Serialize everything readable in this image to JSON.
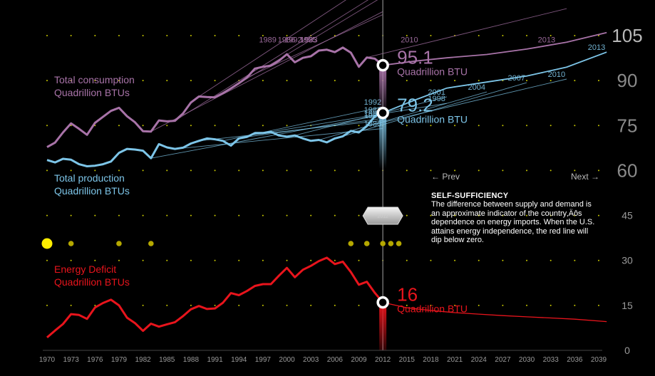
{
  "chart_data": {
    "type": "line",
    "x_axis": {
      "min": 1970,
      "max": 2040,
      "tick_labels": [
        "1970",
        "1973",
        "1976",
        "1979",
        "1982",
        "1985",
        "1988",
        "1991",
        "1994",
        "1997",
        "2000",
        "2003",
        "2006",
        "2009",
        "2012",
        "2015",
        "2018",
        "2021",
        "2024",
        "2027",
        "2030",
        "2033",
        "2036",
        "2039"
      ]
    },
    "left_axis": {
      "min": 0,
      "max": 105,
      "tick_labels": [
        "0",
        "15",
        "30",
        "45",
        "60",
        "75",
        "90",
        "105"
      ]
    },
    "grid": "dotted",
    "marker_year": 2012,
    "series": [
      {
        "key": "consumption",
        "label_line1": "Total consumption",
        "label_line2": "Quadrillion BTUs",
        "color": "#a873a8",
        "readout_value": "95.1",
        "readout_unit": "Quadrillion BTU",
        "x": [
          1970,
          1971,
          1972,
          1973,
          1974,
          1975,
          1976,
          1977,
          1978,
          1979,
          1980,
          1981,
          1982,
          1983,
          1984,
          1985,
          1986,
          1987,
          1988,
          1989,
          1990,
          1991,
          1992,
          1993,
          1994,
          1995,
          1996,
          1997,
          1998,
          1999,
          2000,
          2001,
          2002,
          2003,
          2004,
          2005,
          2006,
          2007,
          2008,
          2009,
          2010,
          2011,
          2012
        ],
        "y": [
          67.8,
          69.3,
          72.7,
          75.7,
          73.9,
          71.9,
          75.9,
          77.9,
          79.9,
          80.9,
          78.1,
          76.1,
          73.1,
          73.0,
          76.7,
          76.4,
          76.6,
          79.0,
          82.7,
          84.7,
          84.5,
          84.4,
          85.8,
          87.4,
          89.1,
          91.0,
          94.0,
          94.6,
          95.0,
          96.6,
          98.8,
          96.1,
          97.6,
          98.1,
          100.0,
          100.3,
          99.5,
          101.0,
          99.3,
          94.6,
          97.7,
          97.3,
          95.1
        ]
      },
      {
        "key": "production",
        "label_line1": "Total production",
        "label_line2": "Quadrillion BTUs",
        "color": "#7dc5e8",
        "readout_value": "79.2",
        "readout_unit": "Quadrillion BTU",
        "x": [
          1970,
          1971,
          1972,
          1973,
          1974,
          1975,
          1976,
          1977,
          1978,
          1979,
          1980,
          1981,
          1982,
          1983,
          1984,
          1985,
          1986,
          1987,
          1988,
          1989,
          1990,
          1991,
          1992,
          1993,
          1994,
          1995,
          1996,
          1997,
          1998,
          1999,
          2000,
          2001,
          2002,
          2003,
          2004,
          2005,
          2006,
          2007,
          2008,
          2009,
          2010,
          2011,
          2012
        ],
        "y": [
          63.5,
          62.7,
          63.9,
          63.6,
          62.1,
          61.4,
          61.6,
          62.1,
          63.0,
          65.9,
          67.2,
          67.0,
          66.6,
          64.1,
          68.8,
          67.7,
          67.2,
          67.6,
          69.0,
          69.9,
          70.7,
          70.4,
          69.9,
          68.3,
          70.7,
          71.2,
          72.5,
          72.5,
          72.9,
          71.7,
          71.3,
          71.7,
          70.7,
          69.9,
          70.2,
          69.4,
          70.7,
          71.4,
          73.2,
          72.7,
          74.8,
          78.1,
          79.2
        ]
      },
      {
        "key": "deficit",
        "label_line1": "Energy Deficit",
        "label_line2": "Quadrillion BTUs",
        "color": "#e8141c",
        "readout_value": "16",
        "readout_unit": "Quadrillion BTU",
        "x": [
          1970,
          1971,
          1972,
          1973,
          1974,
          1975,
          1976,
          1977,
          1978,
          1979,
          1980,
          1981,
          1982,
          1983,
          1984,
          1985,
          1986,
          1987,
          1988,
          1989,
          1990,
          1991,
          1992,
          1993,
          1994,
          1995,
          1996,
          1997,
          1998,
          1999,
          2000,
          2001,
          2002,
          2003,
          2004,
          2005,
          2006,
          2007,
          2008,
          2009,
          2010,
          2011,
          2012
        ],
        "y": [
          4.3,
          6.6,
          8.8,
          12.1,
          11.8,
          10.5,
          14.3,
          15.8,
          16.9,
          15.0,
          10.9,
          9.1,
          6.5,
          8.9,
          7.9,
          8.7,
          9.4,
          11.4,
          13.7,
          14.8,
          13.8,
          14.0,
          15.9,
          19.1,
          18.4,
          19.8,
          21.5,
          22.1,
          22.1,
          24.9,
          27.5,
          24.4,
          26.9,
          28.2,
          29.8,
          30.9,
          28.8,
          29.6,
          26.1,
          21.9,
          22.9,
          19.2,
          16.0
        ],
        "projection": {
          "x": [
            2012,
            2015,
            2018,
            2021,
            2024,
            2027,
            2030,
            2033,
            2036,
            2040
          ],
          "y": [
            16.0,
            14.2,
            13.3,
            12.6,
            12.1,
            11.6,
            11.2,
            10.8,
            10.4,
            9.6
          ]
        }
      }
    ],
    "projections": [
      {
        "label": "1983",
        "series": "consumption",
        "x": [
          1983,
          2012
        ],
        "y": [
          73.0,
          113.0
        ]
      },
      {
        "label": "1986",
        "series": "consumption",
        "x": [
          1986,
          2012
        ],
        "y": [
          76.6,
          120.0
        ]
      },
      {
        "label": "1989",
        "series": "consumption",
        "x": [
          1989,
          2012
        ],
        "y": [
          84.7,
          125.0
        ]
      },
      {
        "label": "1992",
        "series": "consumption",
        "x": [
          1992,
          2012
        ],
        "y": [
          85.8,
          118.0
        ]
      },
      {
        "label": "1995",
        "series": "consumption",
        "x": [
          1995,
          2012
        ],
        "y": [
          91.0,
          112.0
        ]
      },
      {
        "label": "2010",
        "series": "consumption",
        "x": [
          2010,
          2035
        ],
        "y": [
          97.7,
          114.0
        ]
      },
      {
        "label": "2013",
        "series": "consumption",
        "x": [
          2012,
          2016,
          2020,
          2025,
          2030,
          2035,
          2040
        ],
        "y": [
          95.1,
          96.5,
          97.6,
          98.7,
          100.5,
          102.8,
          106.0
        ]
      },
      {
        "label": "1983",
        "series": "production",
        "x": [
          1983,
          2012
        ],
        "y": [
          64.1,
          78.6
        ]
      },
      {
        "label": "1986",
        "series": "production",
        "x": [
          1986,
          2012
        ],
        "y": [
          67.2,
          74.0
        ]
      },
      {
        "label": "1989",
        "series": "production",
        "x": [
          1989,
          2012
        ],
        "y": [
          69.9,
          76.7
        ]
      },
      {
        "label": "1992",
        "series": "production",
        "x": [
          1992,
          2012
        ],
        "y": [
          69.9,
          81.2
        ]
      },
      {
        "label": "1995",
        "series": "production",
        "x": [
          1995,
          2012
        ],
        "y": [
          71.2,
          77.4
        ]
      },
      {
        "label": "1998",
        "series": "production",
        "x": [
          1998,
          2020
        ],
        "y": [
          72.9,
          82.4
        ]
      },
      {
        "label": "2001",
        "series": "production",
        "x": [
          2001,
          2020
        ],
        "y": [
          71.7,
          84.6
        ]
      },
      {
        "label": "2004",
        "series": "production",
        "x": [
          2004,
          2025
        ],
        "y": [
          70.2,
          86.2
        ]
      },
      {
        "label": "2007",
        "series": "production",
        "x": [
          2007,
          2030
        ],
        "y": [
          71.4,
          89.3
        ]
      },
      {
        "label": "2010",
        "series": "production",
        "x": [
          2010,
          2035
        ],
        "y": [
          74.8,
          90.5
        ]
      },
      {
        "label": "2013",
        "series": "production",
        "x": [
          2012,
          2016,
          2020,
          2025,
          2030,
          2035,
          2040
        ],
        "y": [
          79.2,
          83.5,
          87.5,
          89.5,
          91.5,
          94.5,
          99.5
        ]
      }
    ],
    "timeline_dots": [
      1970,
      1973,
      1979,
      1983,
      2008,
      2010,
      2012,
      2013,
      2014
    ],
    "timeline_selected": 1970
  },
  "slider": {
    "label": "2012"
  },
  "panel": {
    "prev_label": "← Prev",
    "next_label": "Next →",
    "heading": "SELF-SUFFICIENCY",
    "body": "The difference between supply and demand is an approximate indicator of the country‚Äôs dependence on energy imports. When the U.S. attains energy independence, the red line will dip below zero."
  },
  "colors": {
    "dot_grid": "#c8c800",
    "timeline_dot": "#b5a800",
    "timeline_selected": "#ffee00",
    "marker_line": "#888888"
  }
}
